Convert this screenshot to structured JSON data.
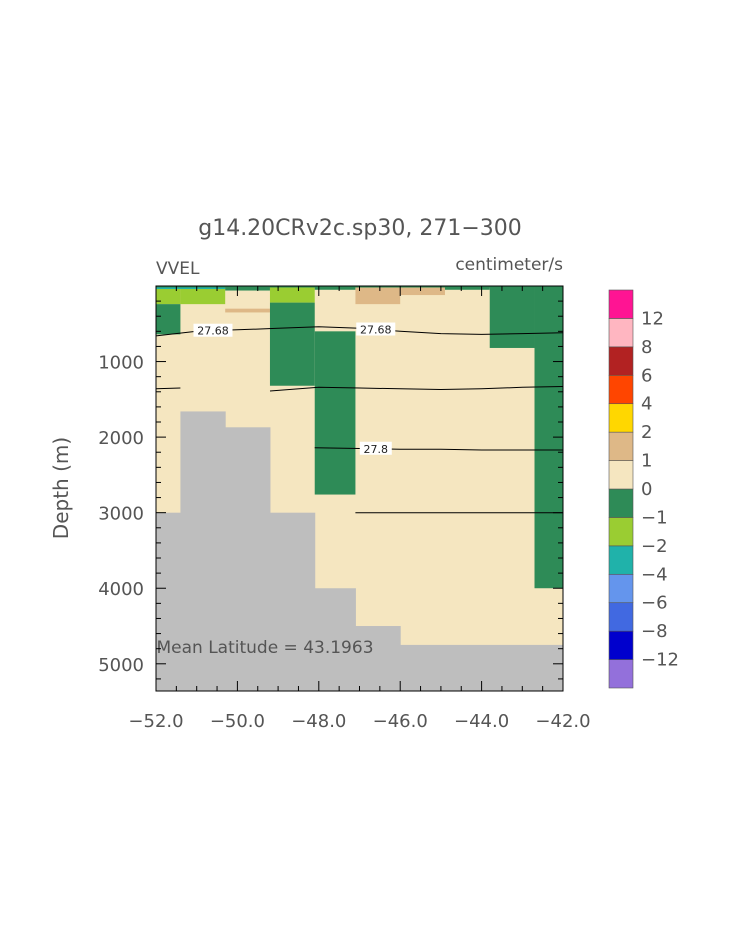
{
  "chart_data": {
    "type": "heatmap",
    "title": "g14.20CRv2c.sp30, 271−300",
    "variable_label": "VVEL",
    "units_label": "centimeter/s",
    "ylabel": "Depth (m)",
    "xlabel": "",
    "xlim": [
      -52.0,
      -42.0
    ],
    "ylim": [
      5360,
      0
    ],
    "x_tick_labels": [
      "−52.0",
      "−50.0",
      "−48.0",
      "−46.0",
      "−44.0",
      "−42.0"
    ],
    "x_tick_values": [
      -52,
      -50,
      -48,
      -46,
      -44,
      -42
    ],
    "y_tick_labels": [
      "1000",
      "2000",
      "3000",
      "4000",
      "5000"
    ],
    "y_tick_values": [
      1000,
      2000,
      3000,
      4000,
      5000
    ],
    "annotation": "Mean Latitude = 43.1963",
    "background_fill": "#f5e6c0",
    "colors": {
      "bathymetry": "#bebebe",
      "cat_pos_0_1": "#f5e6c0",
      "cat_neg_1_0": "#2e8b57",
      "cat_neg_2_1": "#9acd32",
      "cat_neg_4_2": "#20b2aa",
      "cat_pos_1_2": "#deb887"
    },
    "cells": [
      {
        "x0": -52.0,
        "x1": -51.4,
        "z0": 0,
        "z1": 240,
        "color": "#9acd32"
      },
      {
        "x0": -51.4,
        "x1": -50.3,
        "z0": 0,
        "z1": 240,
        "color": "#9acd32"
      },
      {
        "x0": -52.0,
        "x1": -50.3,
        "z0": 0,
        "z1": 40,
        "color": "#20b2aa"
      },
      {
        "x0": -50.3,
        "x1": -49.2,
        "z0": 0,
        "z1": 60,
        "color": "#2e8b57"
      },
      {
        "x0": -50.3,
        "x1": -49.2,
        "z0": 300,
        "z1": 350,
        "color": "#deb887"
      },
      {
        "x0": -52.0,
        "x1": -51.4,
        "z0": 240,
        "z1": 640,
        "color": "#2e8b57"
      },
      {
        "x0": -49.2,
        "x1": -48.1,
        "z0": 0,
        "z1": 220,
        "color": "#9acd32"
      },
      {
        "x0": -49.2,
        "x1": -48.1,
        "z0": 220,
        "z1": 1320,
        "color": "#2e8b57"
      },
      {
        "x0": -48.1,
        "x1": -47.1,
        "z0": 600,
        "z1": 2760,
        "color": "#2e8b57"
      },
      {
        "x0": -48.1,
        "x1": -47.1,
        "z0": 0,
        "z1": 50,
        "color": "#2e8b57"
      },
      {
        "x0": -47.1,
        "x1": -46.0,
        "z0": 0,
        "z1": 240,
        "color": "#deb887"
      },
      {
        "x0": -46.0,
        "x1": -44.9,
        "z0": 0,
        "z1": 120,
        "color": "#deb887"
      },
      {
        "x0": -44.9,
        "x1": -43.8,
        "z0": 0,
        "z1": 50,
        "color": "#2e8b57"
      },
      {
        "x0": -43.8,
        "x1": -42.7,
        "z0": 0,
        "z1": 820,
        "color": "#2e8b57"
      },
      {
        "x0": -42.7,
        "x1": -42.0,
        "z0": 0,
        "z1": 4000,
        "color": "#2e8b57"
      },
      {
        "x0": -52.0,
        "x1": -42.0,
        "z0": 0,
        "z1": 20,
        "color": "#2e8b57"
      }
    ],
    "bathymetry": [
      {
        "x0": -52.0,
        "x1": -51.4,
        "z_top": 3000
      },
      {
        "x0": -51.4,
        "x1": -50.3,
        "z_top": 1660
      },
      {
        "x0": -50.3,
        "x1": -49.2,
        "z_top": 1870
      },
      {
        "x0": -49.2,
        "x1": -48.1,
        "z_top": 3000
      },
      {
        "x0": -48.1,
        "x1": -47.1,
        "z_top": 4000
      },
      {
        "x0": -47.1,
        "x1": -46.0,
        "z_top": 4500
      },
      {
        "x0": -46.0,
        "x1": -42.0,
        "z_top": 4750
      }
    ],
    "contours": [
      {
        "label": "27.68",
        "points": [
          [
            -52.0,
            660
          ],
          [
            -51.0,
            600
          ],
          [
            -50.0,
            580
          ],
          [
            -49.0,
            560
          ],
          [
            -48.0,
            540
          ],
          [
            -47.0,
            560
          ],
          [
            -46.0,
            600
          ],
          [
            -45.0,
            630
          ],
          [
            -44.0,
            640
          ],
          [
            -43.0,
            630
          ],
          [
            -42.0,
            620
          ]
        ],
        "label_positions": [
          -50.6,
          -46.6
        ]
      },
      {
        "label": "",
        "points": [
          [
            -52.0,
            1360
          ],
          [
            -51.4,
            1350
          ]
        ]
      },
      {
        "label": "",
        "points": [
          [
            -49.2,
            1390
          ],
          [
            -48.0,
            1340
          ],
          [
            -47.0,
            1350
          ],
          [
            -46.0,
            1360
          ],
          [
            -45.0,
            1370
          ],
          [
            -44.0,
            1360
          ],
          [
            -43.0,
            1340
          ],
          [
            -42.0,
            1330
          ]
        ]
      },
      {
        "label": "27.8",
        "points": [
          [
            -48.1,
            2140
          ],
          [
            -47.0,
            2150
          ],
          [
            -46.0,
            2160
          ],
          [
            -45.0,
            2160
          ],
          [
            -44.0,
            2170
          ],
          [
            -43.0,
            2170
          ],
          [
            -42.0,
            2170
          ]
        ],
        "label_positions": [
          -46.6
        ]
      },
      {
        "label": "",
        "points": [
          [
            -47.1,
            3000
          ],
          [
            -46.0,
            3000
          ],
          [
            -45.0,
            3000
          ],
          [
            -44.0,
            3000
          ],
          [
            -43.0,
            3000
          ],
          [
            -42.0,
            3000
          ]
        ]
      }
    ],
    "legend": {
      "placement": "right",
      "colors": [
        "#9370db",
        "#0000cd",
        "#4169e1",
        "#6495ed",
        "#20b2aa",
        "#9acd32",
        "#2e8b57",
        "#f5e6c0",
        "#deb887",
        "#ffd700",
        "#ff4500",
        "#b22222",
        "#ffb6c1",
        "#ff1493"
      ],
      "labels": [
        "−12",
        "−8",
        "−6",
        "−4",
        "−2",
        "−1",
        "0",
        "1",
        "2",
        "4",
        "6",
        "8",
        "12"
      ]
    }
  }
}
